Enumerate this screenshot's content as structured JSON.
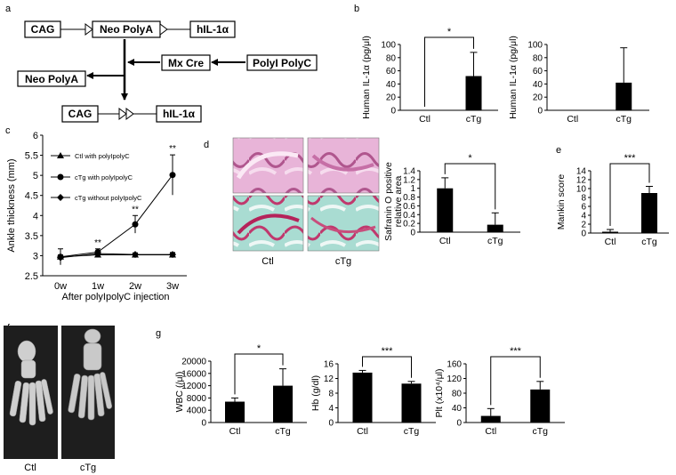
{
  "panels": {
    "a": {
      "letter": "a",
      "boxes": {
        "cag_top": "CAG",
        "neo_polya_top": "Neo PolyA",
        "hil_top": "hIL-1α",
        "mx_cre": "Mx Cre",
        "polyi_polyc": "PolyI PolyC",
        "neo_polya_out": "Neo PolyA",
        "cag_bottom": "CAG",
        "hil_bottom": "hIL-1α"
      }
    },
    "b": {
      "letter": "b"
    },
    "c": {
      "letter": "c"
    },
    "d": {
      "letter": "d",
      "image_labels": [
        "Ctl",
        "cTg"
      ]
    },
    "e": {
      "letter": "e"
    },
    "f": {
      "letter": "f",
      "image_labels": [
        "Ctl",
        "cTg"
      ]
    },
    "g": {
      "letter": "g"
    }
  },
  "colors": {
    "bars": "#000000",
    "he_stain": "#d98cbf",
    "safranin_stain": "#6fc2b4",
    "ct_background": "#1e1e1e",
    "bone": "#cfcfcf"
  },
  "chart_data": [
    {
      "id": "b1",
      "type": "bar",
      "categories": [
        "Ctl",
        "cTg"
      ],
      "values": [
        0,
        52
      ],
      "errors": [
        0,
        36
      ],
      "ylabel": "Human IL-1α (pg/μl)",
      "ylim": [
        0,
        100
      ],
      "yticks": [
        "0",
        "20",
        "40",
        "60",
        "80",
        "100"
      ],
      "significance": "*"
    },
    {
      "id": "b2",
      "type": "bar",
      "categories": [
        "Ctl",
        "cTg"
      ],
      "values": [
        0,
        42
      ],
      "errors": [
        0,
        53
      ],
      "ylabel": "Human IL-1α (pg/μl)",
      "ylim": [
        0,
        100
      ],
      "yticks": [
        "0",
        "20",
        "40",
        "60",
        "80",
        "100"
      ]
    },
    {
      "id": "c",
      "type": "line",
      "categories": [
        "0w",
        "1w",
        "2w",
        "3w"
      ],
      "ylabel": "Ankle thickness (mm)",
      "xlabel": "After polyIpolyC injection",
      "ylim": [
        2.5,
        6
      ],
      "yticks": [
        "2.5",
        "3",
        "3.5",
        "4",
        "4.5",
        "5",
        "5.5",
        "6"
      ],
      "series": [
        {
          "name": "Ctl with polyIpolyC",
          "marker": "triangle",
          "values": [
            2.97,
            3.02,
            3.02,
            3.02
          ],
          "errors": [
            0.05,
            0.05,
            0.04,
            0.05
          ]
        },
        {
          "name": "cTg with polyIpolyC",
          "marker": "circle",
          "values": [
            2.97,
            3.09,
            3.78,
            5.01
          ],
          "errors": [
            0.2,
            0.08,
            0.22,
            0.5
          ]
        },
        {
          "name": "cTg without polyIpolyC",
          "marker": "diamond",
          "values": [
            2.95,
            3.05,
            3.03,
            3.03
          ],
          "errors": [
            0.05,
            0.05,
            0.04,
            0.05
          ]
        }
      ],
      "significance": [
        "",
        "**",
        "**",
        "**"
      ]
    },
    {
      "id": "d",
      "type": "bar",
      "categories": [
        "Ctl",
        "cTg"
      ],
      "values": [
        1.0,
        0.17
      ],
      "errors": [
        0.24,
        0.27
      ],
      "ylabel": "Safranin O positive relative area",
      "ylim": [
        0,
        1.4
      ],
      "yticks": [
        "0",
        "0.2",
        "0.4",
        "0.6",
        "0.8",
        "1",
        "1.2",
        "1.4"
      ],
      "significance": "*"
    },
    {
      "id": "e",
      "type": "bar",
      "categories": [
        "Ctl",
        "cTg"
      ],
      "values": [
        0.3,
        9.0
      ],
      "errors": [
        0.5,
        1.5
      ],
      "ylabel": "Mankin score",
      "ylim": [
        0,
        14
      ],
      "yticks": [
        "0",
        "2",
        "4",
        "6",
        "8",
        "10",
        "12",
        "14"
      ],
      "significance": "***"
    },
    {
      "id": "g1",
      "type": "bar",
      "categories": [
        "Ctl",
        "cTg"
      ],
      "values": [
        6800,
        12000
      ],
      "errors": [
        1200,
        5500
      ],
      "ylabel": "WBC (/μl)",
      "ylim": [
        0,
        20000
      ],
      "yticks": [
        "0",
        "4000",
        "8000",
        "12000",
        "16000",
        "20000"
      ],
      "significance": "*"
    },
    {
      "id": "g2",
      "type": "bar",
      "categories": [
        "Ctl",
        "cTg"
      ],
      "values": [
        13.6,
        10.6
      ],
      "errors": [
        0.6,
        0.6
      ],
      "ylabel": "Hb (g/dl)",
      "ylim": [
        0,
        16
      ],
      "yticks": [
        "0",
        "4",
        "8",
        "12",
        "16"
      ],
      "significance": "***"
    },
    {
      "id": "g3",
      "type": "bar",
      "categories": [
        "Ctl",
        "cTg"
      ],
      "values": [
        18,
        90
      ],
      "errors": [
        20,
        22
      ],
      "ylabel": "Plt (x10⁴/μl)",
      "ylim": [
        0,
        160
      ],
      "yticks": [
        "0",
        "40",
        "80",
        "120",
        "160"
      ],
      "significance": "***"
    }
  ]
}
